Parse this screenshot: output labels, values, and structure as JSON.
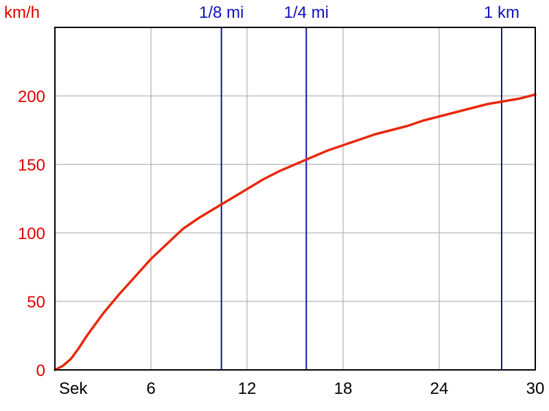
{
  "chart_data": {
    "type": "line",
    "ylabel": "km/h",
    "xlabel": "Sek",
    "xlim": [
      0,
      30
    ],
    "ylim": [
      0,
      250
    ],
    "x_ticks": [
      0,
      6,
      12,
      18,
      24,
      30
    ],
    "x_tick_labels": [
      "Sek",
      "6",
      "12",
      "18",
      "24",
      "30"
    ],
    "y_ticks": [
      0,
      50,
      100,
      150,
      200
    ],
    "y_tick_labels": [
      "0",
      "50",
      "100",
      "150",
      "200"
    ],
    "grid": true,
    "colors": {
      "curve": "#e8280a",
      "markers": "#1010a0",
      "axis_labels": "#e00000",
      "grid": "#a0a0a0"
    },
    "markers": [
      {
        "label": "1/8 mi",
        "x": 10.4
      },
      {
        "label": "1/4 mi",
        "x": 15.7
      },
      {
        "label": "1 km",
        "x": 27.9
      }
    ],
    "series": [
      {
        "x": [
          0,
          0.5,
          1,
          1.5,
          2,
          2.5,
          3,
          4,
          5,
          6,
          7,
          8,
          9,
          10,
          11,
          12,
          13,
          14,
          15,
          16,
          17,
          18,
          19,
          20,
          21,
          22,
          23,
          24,
          25,
          26,
          27,
          28,
          29,
          30
        ],
        "values": [
          0,
          3,
          8,
          16,
          25,
          33,
          41,
          55,
          68,
          81,
          92,
          103,
          111,
          118,
          125,
          132,
          139,
          145,
          150,
          155,
          160,
          164,
          168,
          172,
          175,
          178,
          182,
          185,
          188,
          191,
          194,
          196,
          198,
          201
        ]
      }
    ]
  }
}
